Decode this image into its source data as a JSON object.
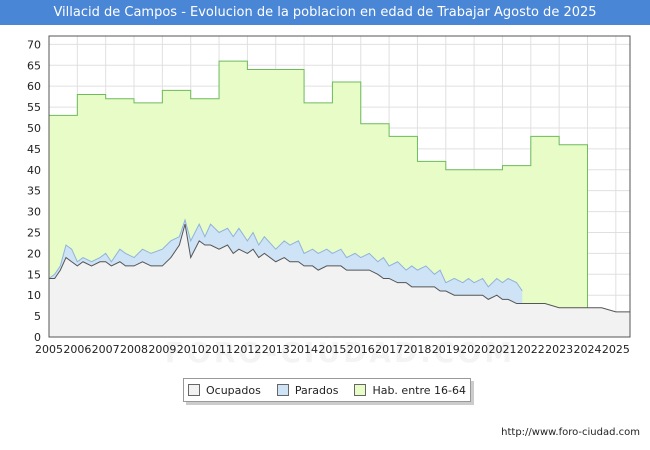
{
  "title": "Villacid de Campos - Evolucion de la poblacion en edad de Trabajar Agosto de 2025",
  "source": "http://www.foro-ciudad.com",
  "watermark": "FORO-CIUDAD.COM",
  "colors": {
    "title_bg": "#4a86d6",
    "ocupados": "#f2f2f2",
    "parados": "#cfe3f7",
    "hab": "#e8fcc8",
    "hab_line": "#6dbb5b",
    "ocupados_line": "#555555",
    "parados_line": "#8fb3da"
  },
  "legend": {
    "ocupados": "Ocupados",
    "parados": "Parados",
    "hab": "Hab. entre 16-64"
  },
  "chart_data": {
    "type": "area",
    "title": "Villacid de Campos - Evolucion de la poblacion en edad de Trabajar Agosto de 2025",
    "xlim": [
      2005,
      2025.5
    ],
    "ylim": [
      0,
      72
    ],
    "x_ticks": [
      2005,
      2006,
      2007,
      2008,
      2009,
      2010,
      2011,
      2012,
      2013,
      2014,
      2015,
      2016,
      2017,
      2018,
      2019,
      2020,
      2021,
      2022,
      2023,
      2024,
      2025
    ],
    "y_ticks": [
      0,
      5,
      10,
      15,
      20,
      25,
      30,
      35,
      40,
      45,
      50,
      55,
      60,
      65,
      70
    ],
    "grid": true,
    "legend_position": "bottom",
    "series": [
      {
        "name": "Hab. entre 16-64",
        "step": true,
        "points": [
          [
            2005,
            53
          ],
          [
            2006,
            58
          ],
          [
            2007,
            57
          ],
          [
            2008,
            56
          ],
          [
            2009,
            59
          ],
          [
            2010,
            57
          ],
          [
            2011,
            66
          ],
          [
            2012,
            64
          ],
          [
            2013,
            64
          ],
          [
            2014,
            56
          ],
          [
            2015,
            61
          ],
          [
            2016,
            51
          ],
          [
            2017,
            48
          ],
          [
            2018,
            42
          ],
          [
            2019,
            40
          ],
          [
            2021,
            41
          ],
          [
            2022,
            48
          ],
          [
            2023,
            46
          ],
          [
            2024,
            46
          ]
        ],
        "end": 2024
      },
      {
        "name": "Parados",
        "points": [
          [
            2005,
            14
          ],
          [
            2005.2,
            15
          ],
          [
            2005.4,
            17
          ],
          [
            2005.6,
            22
          ],
          [
            2005.8,
            21
          ],
          [
            2006,
            18
          ],
          [
            2006.2,
            19
          ],
          [
            2006.5,
            18
          ],
          [
            2006.8,
            19
          ],
          [
            2007,
            20
          ],
          [
            2007.2,
            18
          ],
          [
            2007.5,
            21
          ],
          [
            2007.7,
            20
          ],
          [
            2008,
            19
          ],
          [
            2008.3,
            21
          ],
          [
            2008.6,
            20
          ],
          [
            2009,
            21
          ],
          [
            2009.3,
            23
          ],
          [
            2009.6,
            24
          ],
          [
            2009.8,
            28
          ],
          [
            2010,
            23
          ],
          [
            2010.3,
            27
          ],
          [
            2010.5,
            24
          ],
          [
            2010.7,
            27
          ],
          [
            2011,
            25
          ],
          [
            2011.3,
            26
          ],
          [
            2011.5,
            24
          ],
          [
            2011.7,
            26
          ],
          [
            2012,
            23
          ],
          [
            2012.2,
            25
          ],
          [
            2012.4,
            22
          ],
          [
            2012.6,
            24
          ],
          [
            2013,
            21
          ],
          [
            2013.3,
            23
          ],
          [
            2013.5,
            22
          ],
          [
            2013.8,
            23
          ],
          [
            2014,
            20
          ],
          [
            2014.3,
            21
          ],
          [
            2014.5,
            20
          ],
          [
            2014.8,
            21
          ],
          [
            2015,
            20
          ],
          [
            2015.3,
            21
          ],
          [
            2015.5,
            19
          ],
          [
            2015.8,
            20
          ],
          [
            2016,
            19
          ],
          [
            2016.3,
            20
          ],
          [
            2016.6,
            18
          ],
          [
            2016.8,
            19
          ],
          [
            2017,
            17
          ],
          [
            2017.3,
            18
          ],
          [
            2017.6,
            16
          ],
          [
            2017.8,
            17
          ],
          [
            2018,
            16
          ],
          [
            2018.3,
            17
          ],
          [
            2018.6,
            15
          ],
          [
            2018.8,
            16
          ],
          [
            2019,
            13
          ],
          [
            2019.3,
            14
          ],
          [
            2019.6,
            13
          ],
          [
            2019.8,
            14
          ],
          [
            2020,
            13
          ],
          [
            2020.3,
            14
          ],
          [
            2020.5,
            12
          ],
          [
            2020.8,
            14
          ],
          [
            2021,
            13
          ],
          [
            2021.2,
            14
          ],
          [
            2021.5,
            13
          ],
          [
            2021.7,
            11
          ]
        ],
        "end": 2021.7
      },
      {
        "name": "Ocupados",
        "points": [
          [
            2005,
            14
          ],
          [
            2005.2,
            14
          ],
          [
            2005.4,
            16
          ],
          [
            2005.6,
            19
          ],
          [
            2005.8,
            18
          ],
          [
            2006,
            17
          ],
          [
            2006.2,
            18
          ],
          [
            2006.5,
            17
          ],
          [
            2006.8,
            18
          ],
          [
            2007,
            18
          ],
          [
            2007.2,
            17
          ],
          [
            2007.5,
            18
          ],
          [
            2007.7,
            17
          ],
          [
            2008,
            17
          ],
          [
            2008.3,
            18
          ],
          [
            2008.6,
            17
          ],
          [
            2009,
            17
          ],
          [
            2009.3,
            19
          ],
          [
            2009.6,
            22
          ],
          [
            2009.8,
            27
          ],
          [
            2010,
            19
          ],
          [
            2010.3,
            23
          ],
          [
            2010.5,
            22
          ],
          [
            2010.7,
            22
          ],
          [
            2011,
            21
          ],
          [
            2011.3,
            22
          ],
          [
            2011.5,
            20
          ],
          [
            2011.7,
            21
          ],
          [
            2012,
            20
          ],
          [
            2012.2,
            21
          ],
          [
            2012.4,
            19
          ],
          [
            2012.6,
            20
          ],
          [
            2013,
            18
          ],
          [
            2013.3,
            19
          ],
          [
            2013.5,
            18
          ],
          [
            2013.8,
            18
          ],
          [
            2014,
            17
          ],
          [
            2014.3,
            17
          ],
          [
            2014.5,
            16
          ],
          [
            2014.8,
            17
          ],
          [
            2015,
            17
          ],
          [
            2015.3,
            17
          ],
          [
            2015.5,
            16
          ],
          [
            2015.8,
            16
          ],
          [
            2016,
            16
          ],
          [
            2016.3,
            16
          ],
          [
            2016.6,
            15
          ],
          [
            2016.8,
            14
          ],
          [
            2017,
            14
          ],
          [
            2017.3,
            13
          ],
          [
            2017.6,
            13
          ],
          [
            2017.8,
            12
          ],
          [
            2018,
            12
          ],
          [
            2018.3,
            12
          ],
          [
            2018.6,
            12
          ],
          [
            2018.8,
            11
          ],
          [
            2019,
            11
          ],
          [
            2019.3,
            10
          ],
          [
            2019.6,
            10
          ],
          [
            2019.8,
            10
          ],
          [
            2020,
            10
          ],
          [
            2020.3,
            10
          ],
          [
            2020.5,
            9
          ],
          [
            2020.8,
            10
          ],
          [
            2021,
            9
          ],
          [
            2021.2,
            9
          ],
          [
            2021.5,
            8
          ],
          [
            2021.7,
            8
          ],
          [
            2022,
            8
          ],
          [
            2022.5,
            8
          ],
          [
            2023,
            7
          ],
          [
            2023.5,
            7
          ],
          [
            2024,
            7
          ],
          [
            2024.5,
            7
          ],
          [
            2025,
            6
          ],
          [
            2025.5,
            6
          ]
        ],
        "end": 2025.5
      }
    ]
  }
}
